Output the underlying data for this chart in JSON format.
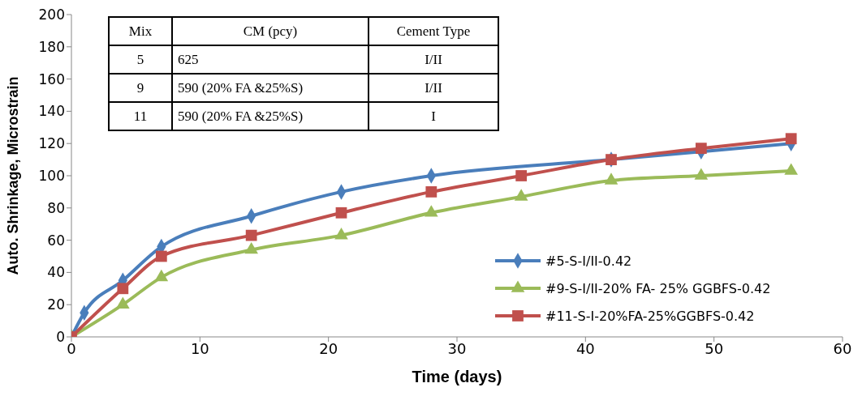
{
  "chart_data": {
    "type": "line",
    "xlabel": "Time (days)",
    "ylabel": "Auto. Shrinkage, Microstrain",
    "xlim": [
      0,
      60
    ],
    "xticks": [
      0,
      10,
      20,
      30,
      40,
      50,
      60
    ],
    "ylim": [
      0,
      200
    ],
    "yticks": [
      0,
      20,
      40,
      60,
      80,
      100,
      120,
      140,
      160,
      180,
      200
    ],
    "grid": false,
    "legend": "bottom right",
    "line_style": "solid",
    "series": [
      {
        "name": "#5-S-I/II-0.42",
        "color": "#4a7ebb",
        "marker": "diamond",
        "x": [
          0,
          1,
          4,
          7,
          14,
          21,
          28,
          42,
          49,
          56
        ],
        "values": [
          0,
          15,
          35,
          56,
          75,
          90,
          100,
          110,
          115,
          120
        ]
      },
      {
        "name": "#9-S-I/II-20% FA- 25% GGBFS-0.42",
        "color": "#9bbb59",
        "marker": "triangle",
        "x": [
          0,
          4,
          7,
          14,
          21,
          28,
          35,
          42,
          49,
          56
        ],
        "values": [
          0,
          20,
          37,
          54,
          63,
          77,
          87,
          97,
          100,
          103
        ]
      },
      {
        "name": "#11-S-I-20%FA-25%GGBFS-0.42",
        "color": "#c0504d",
        "marker": "square",
        "x": [
          0,
          4,
          7,
          14,
          21,
          28,
          35,
          42,
          49,
          56
        ],
        "values": [
          0,
          30,
          50,
          63,
          77,
          90,
          100,
          110,
          117,
          123
        ]
      }
    ],
    "annotations": [
      "Mix",
      "CM (pcy)",
      "Cement Type",
      "5",
      "625",
      "I/II",
      "9",
      "590 (20% FA &25%S)",
      "I/II",
      "11",
      "590 (20% FA &25%S)",
      "I"
    ]
  }
}
